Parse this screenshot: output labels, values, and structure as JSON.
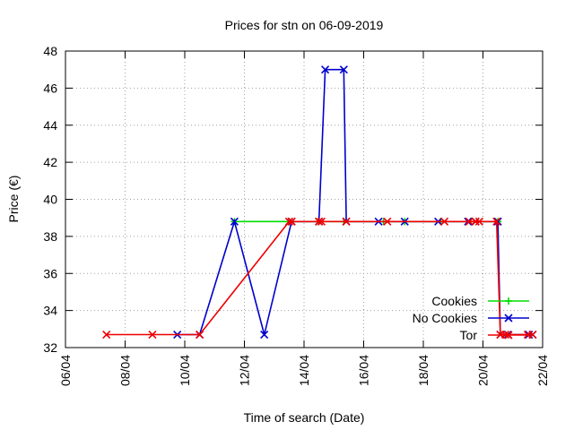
{
  "chart_data": {
    "type": "line",
    "title": "Prices for stn on 06-09-2019",
    "xlabel": "Time of search (Date)",
    "ylabel": "Price (€)",
    "x_range": [
      "2019-04-06",
      "2019-04-22"
    ],
    "ylim": [
      32,
      48
    ],
    "x_ticks": [
      "06/04",
      "08/04",
      "10/04",
      "12/04",
      "14/04",
      "16/04",
      "18/04",
      "20/04",
      "22/04"
    ],
    "y_ticks": [
      "32",
      "34",
      "36",
      "38",
      "40",
      "42",
      "44",
      "46",
      "48"
    ],
    "grid": true,
    "legend_position": "bottom-right",
    "series": [
      {
        "name": "Cookies",
        "color": "#00dd00",
        "marker": "plus",
        "points": [
          [
            "2019-04-11 16:00",
            38.8
          ],
          [
            "2019-04-13 12:00",
            38.8
          ],
          [
            "2019-04-14 12:00",
            38.8
          ],
          [
            "2019-04-15 08:00",
            38.8
          ],
          [
            "2019-04-16 16:00",
            38.8
          ],
          [
            "2019-04-17 09:00",
            38.8
          ],
          [
            "2019-04-18 14:00",
            38.8
          ],
          [
            "2019-04-19 14:00",
            38.8
          ],
          [
            "2019-04-20 12:00",
            38.8
          ]
        ]
      },
      {
        "name": "No Cookies",
        "color": "#0000cc",
        "marker": "cross",
        "points": [
          [
            "2019-04-09 18:00",
            32.7
          ],
          [
            "2019-04-10 12:00",
            32.7
          ],
          [
            "2019-04-11 16:00",
            38.8
          ],
          [
            "2019-04-12 16:00",
            32.7
          ],
          [
            "2019-04-13 14:00",
            38.8
          ],
          [
            "2019-04-14 12:00",
            38.8
          ],
          [
            "2019-04-14 17:00",
            47.0
          ],
          [
            "2019-04-15 08:00",
            47.0
          ],
          [
            "2019-04-15 10:00",
            38.8
          ],
          [
            "2019-04-16 12:00",
            38.8
          ],
          [
            "2019-04-17 09:00",
            38.8
          ],
          [
            "2019-04-18 12:00",
            38.8
          ],
          [
            "2019-04-19 12:00",
            38.8
          ],
          [
            "2019-04-19 18:00",
            38.8
          ],
          [
            "2019-04-20 12:00",
            38.8
          ],
          [
            "2019-04-20 14:00",
            32.7
          ],
          [
            "2019-04-20 20:00",
            32.7
          ],
          [
            "2019-04-21 13:00",
            32.7
          ],
          [
            "2019-04-21 16:00",
            32.7
          ]
        ]
      },
      {
        "name": "Tor",
        "color": "#ee0000",
        "marker": "cross",
        "points": [
          [
            "2019-04-07 09:00",
            32.7
          ],
          [
            "2019-04-08 22:00",
            32.7
          ],
          [
            "2019-04-10 12:00",
            32.7
          ],
          [
            "2019-04-13 12:00",
            38.8
          ],
          [
            "2019-04-13 14:00",
            38.8
          ],
          [
            "2019-04-14 12:00",
            38.8
          ],
          [
            "2019-04-14 14:00",
            38.8
          ],
          [
            "2019-04-15 10:00",
            38.8
          ],
          [
            "2019-04-16 19:00",
            38.8
          ],
          [
            "2019-04-18 17:00",
            38.8
          ],
          [
            "2019-04-19 13:00",
            38.8
          ],
          [
            "2019-04-19 18:00",
            38.8
          ],
          [
            "2019-04-19 21:00",
            38.8
          ],
          [
            "2019-04-20 11:00",
            38.8
          ],
          [
            "2019-04-20 14:00",
            32.7
          ],
          [
            "2019-04-20 18:00",
            32.7
          ],
          [
            "2019-04-21 12:00",
            32.7
          ],
          [
            "2019-04-21 16:00",
            32.7
          ]
        ]
      }
    ]
  }
}
